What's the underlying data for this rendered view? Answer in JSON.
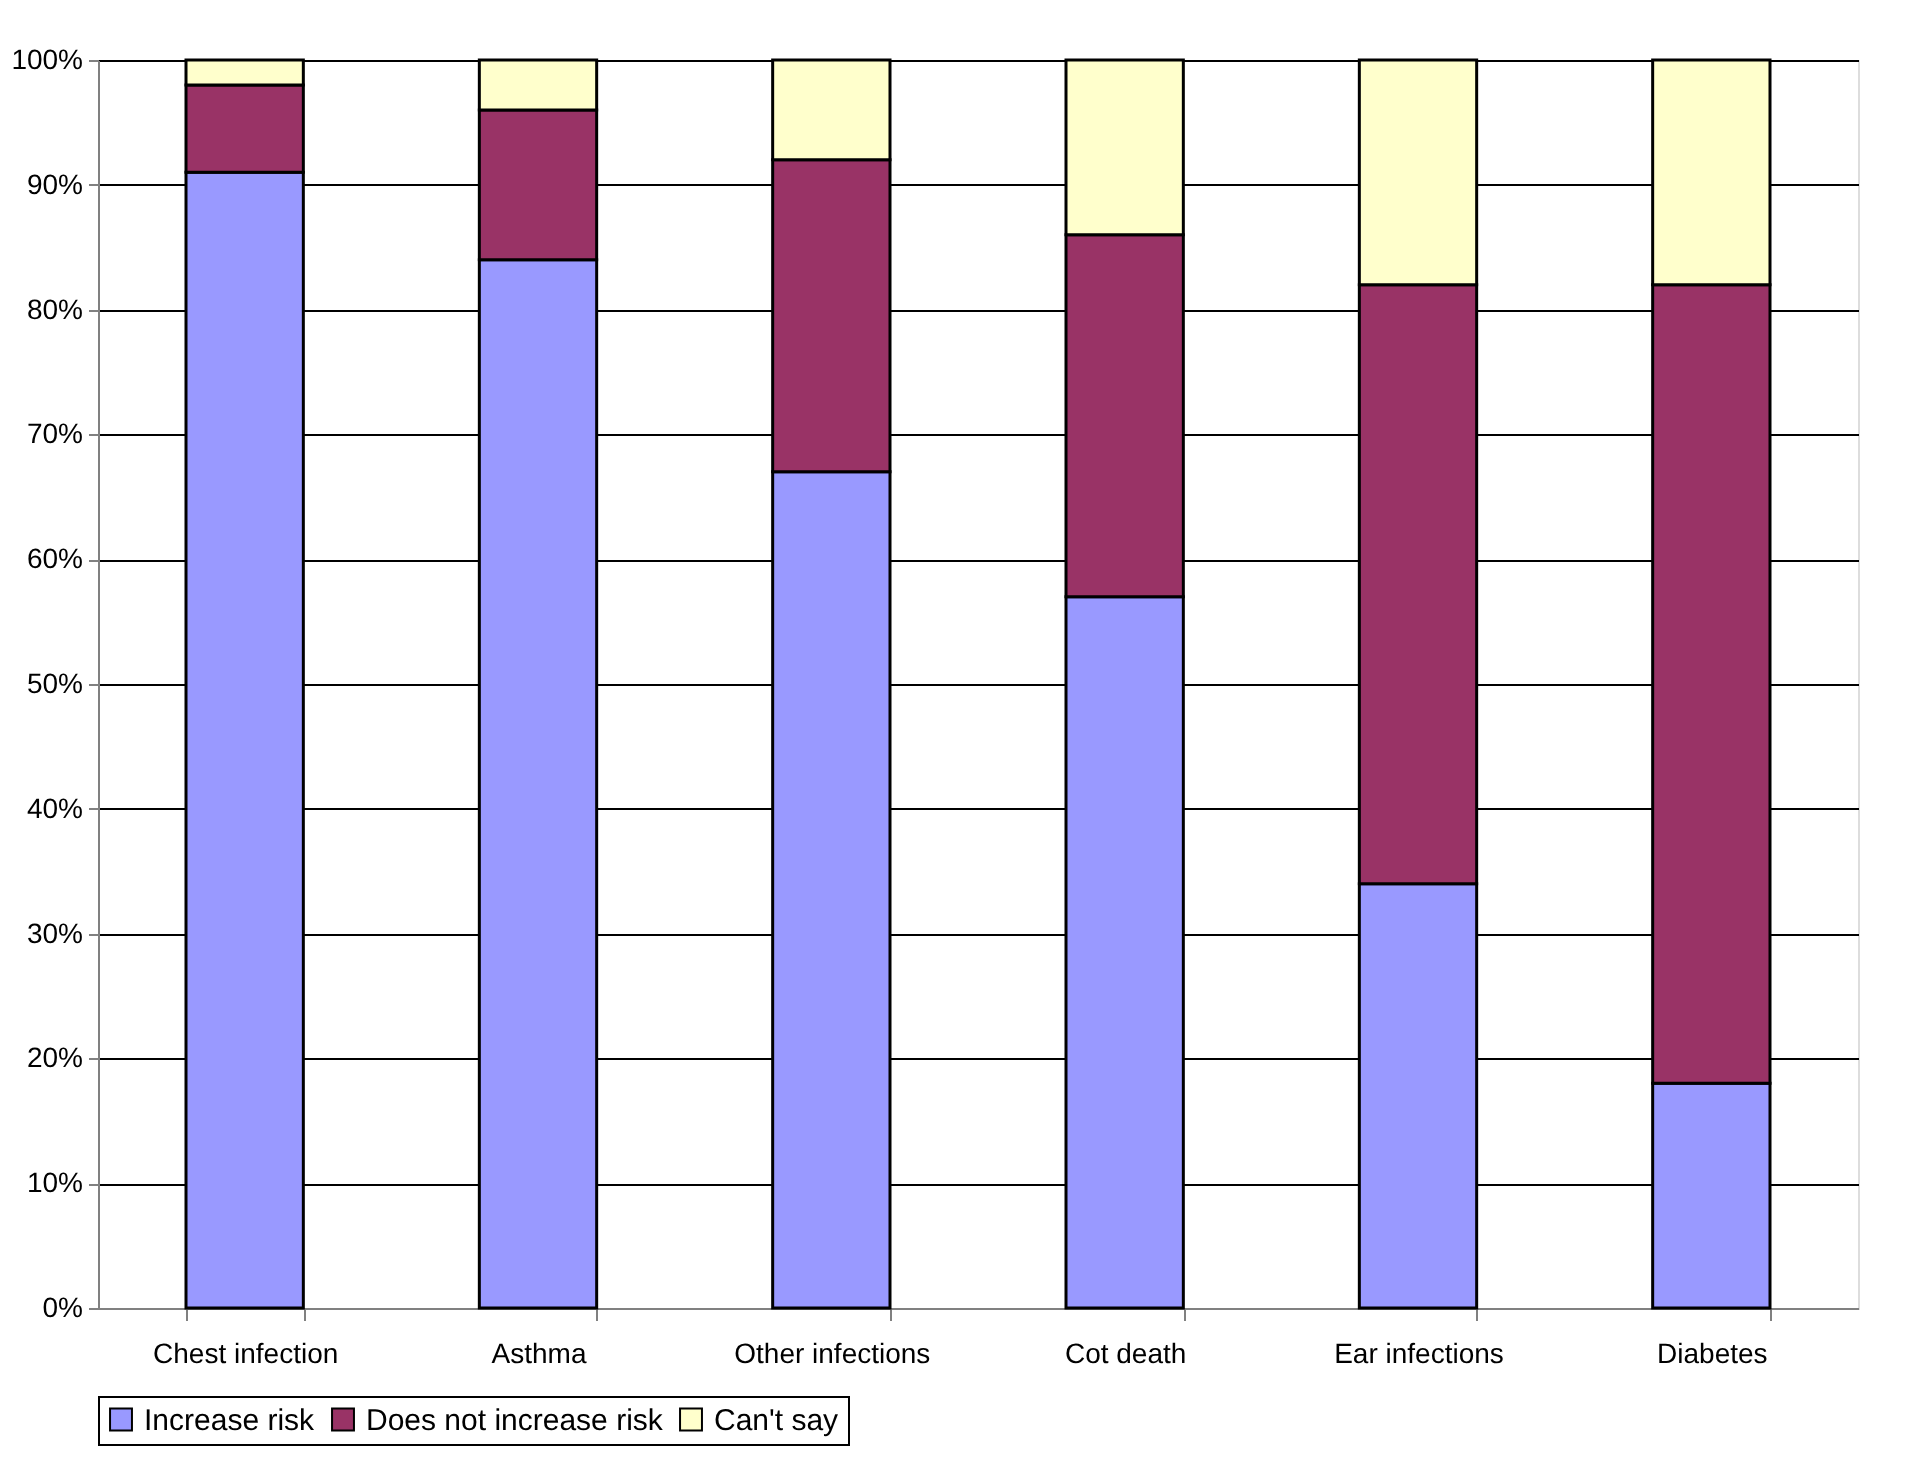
{
  "chart_data": {
    "type": "bar",
    "stacked": true,
    "categories": [
      "Chest infection",
      "Asthma",
      "Other infections",
      "Cot death",
      "Ear infections",
      "Diabetes"
    ],
    "series": [
      {
        "name": "Increase risk",
        "color": "#9999ff",
        "values": [
          91,
          84,
          67,
          57,
          34,
          18
        ]
      },
      {
        "name": "Does not increase risk",
        "color": "#993366",
        "values": [
          7,
          12,
          25,
          29,
          48,
          64
        ]
      },
      {
        "name": "Can't say",
        "color": "#ffffcc",
        "values": [
          2,
          4,
          8,
          14,
          18,
          18
        ]
      }
    ],
    "ylim": [
      0,
      100
    ],
    "yticks": [
      {
        "value": 0,
        "label": "0%"
      },
      {
        "value": 10,
        "label": "10%"
      },
      {
        "value": 20,
        "label": "20%"
      },
      {
        "value": 30,
        "label": "30%"
      },
      {
        "value": 40,
        "label": "40%"
      },
      {
        "value": 50,
        "label": "50%"
      },
      {
        "value": 60,
        "label": "60%"
      },
      {
        "value": 70,
        "label": "70%"
      },
      {
        "value": 80,
        "label": "80%"
      },
      {
        "value": 90,
        "label": "90%"
      },
      {
        "value": 100,
        "label": "100%"
      }
    ],
    "grid": "y",
    "legend": "bottom"
  }
}
